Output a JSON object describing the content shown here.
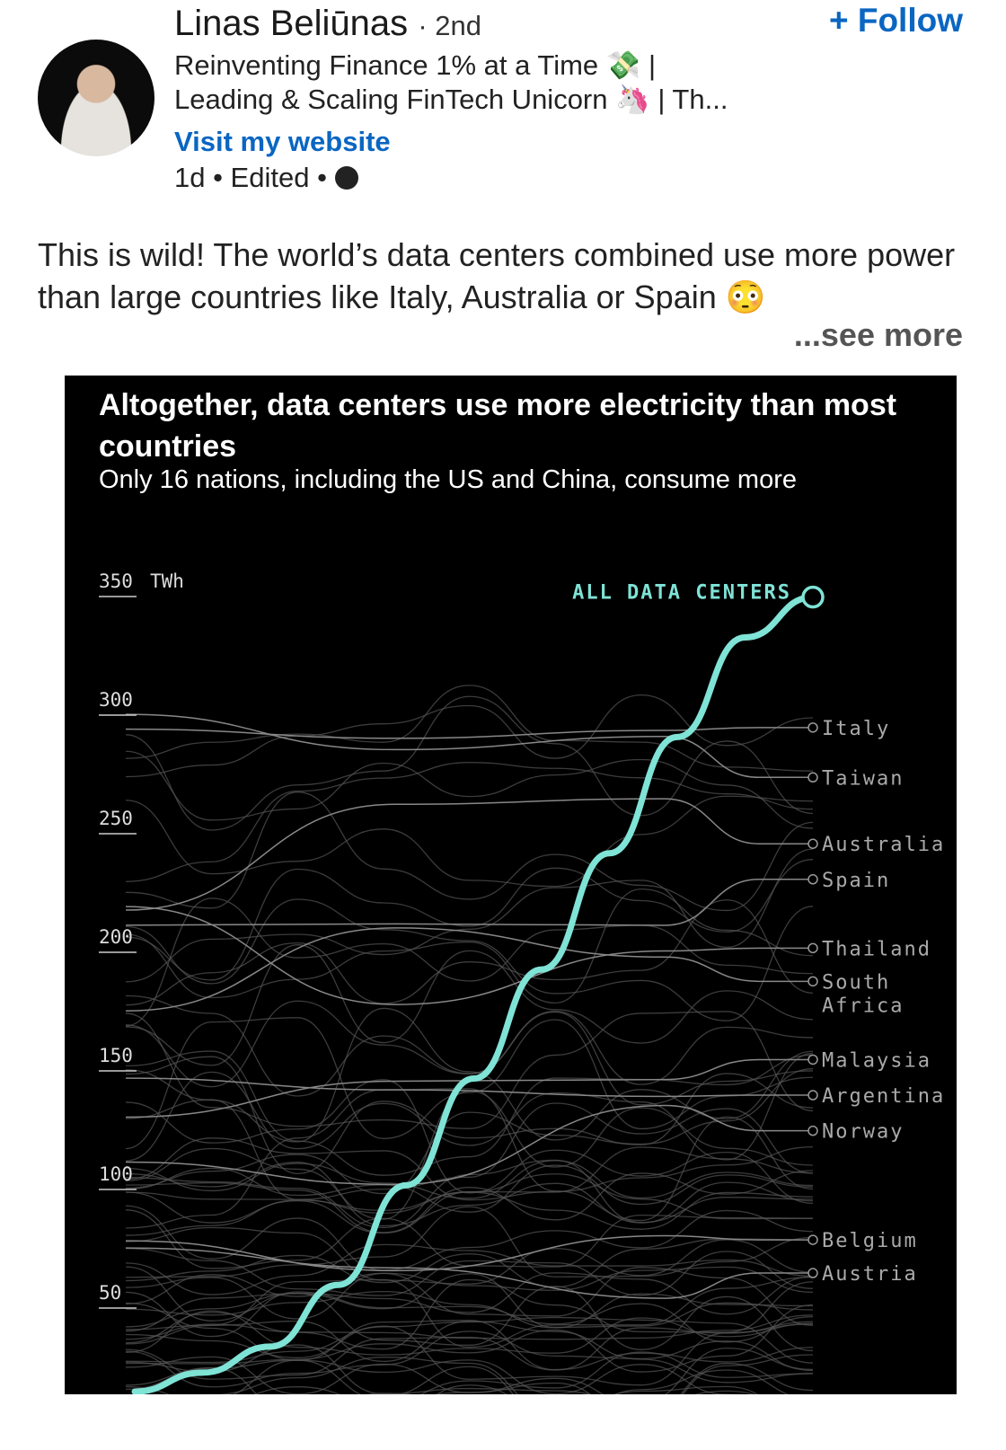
{
  "author": {
    "name": "Linas Beliūnas",
    "degree": "· 2nd",
    "headline_line1": "Reinventing Finance 1% at a Time 💸 |",
    "headline_line2": "Leading & Scaling FinTech Unicorn 🦄 | Th...",
    "website": "Visit my website",
    "meta": "1d • Edited •"
  },
  "follow_label": "+ Follow",
  "post": {
    "text": "This is wild! The world’s data centers combined use more power than large countries like Italy, Australia or Spain 😳",
    "see_more": "...see more"
  },
  "colors": {
    "accent": "#0a66c2",
    "series": "#7fe3d6",
    "country": "#8a8a8a"
  },
  "chart_data": {
    "type": "line",
    "title": "Altogether, data centers use more electricity than most countries",
    "subtitle": "Only 16 nations, including the US and China, consume more",
    "ylabel": "TWh",
    "ylim": [
      0,
      350
    ],
    "yticks": [
      "350",
      "300",
      "250",
      "200",
      "150",
      "100",
      "50"
    ],
    "ytick_values": [
      350,
      300,
      250,
      200,
      150,
      100,
      50
    ],
    "unit_label": "TWh",
    "highlight_series": {
      "name": "ALL DATA CENTERS",
      "x": [
        0,
        1,
        2,
        3,
        4,
        5,
        6,
        7,
        8,
        9,
        10
      ],
      "values": [
        14,
        22,
        33,
        59,
        101,
        146,
        192,
        241,
        290,
        332,
        349
      ]
    },
    "countries": [
      {
        "name": "Italy",
        "value": 294
      },
      {
        "name": "Taiwan",
        "value": 273
      },
      {
        "name": "Australia",
        "value": 245
      },
      {
        "name": "Spain",
        "value": 230
      },
      {
        "name": "Thailand",
        "value": 201
      },
      {
        "name": "South Africa",
        "value": 187
      },
      {
        "name": "Malaysia",
        "value": 154
      },
      {
        "name": "Argentina",
        "value": 139
      },
      {
        "name": "Norway",
        "value": 124
      },
      {
        "name": "Belgium",
        "value": 78
      },
      {
        "name": "Austria",
        "value": 64
      }
    ]
  }
}
